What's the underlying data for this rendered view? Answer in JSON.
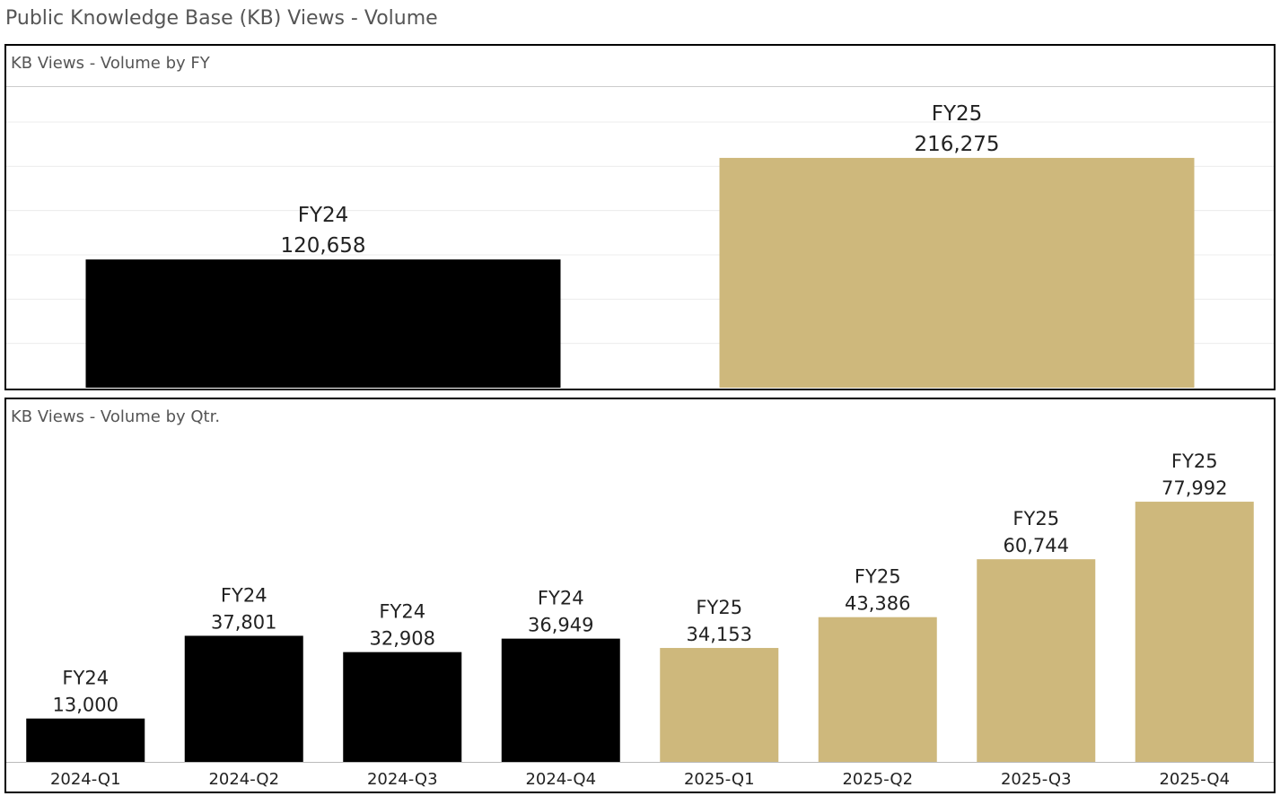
{
  "page": {
    "title": "Public Knowledge Base (KB) Views - Volume"
  },
  "colors": {
    "FY24": "#000000",
    "FY25": "#CEB87C",
    "gridline": "#ececec",
    "axis": "#bbbbbb"
  },
  "chart_data": [
    {
      "type": "bar",
      "title": "KB Views - Volume by FY",
      "categories": [
        "FY24",
        "FY25"
      ],
      "values": [
        120658,
        216275
      ],
      "value_labels": [
        "120,658",
        "216,275"
      ],
      "bar_labels": [
        "FY24",
        "FY25"
      ],
      "color_by": [
        "FY24",
        "FY25"
      ],
      "xlabel": "",
      "ylabel": "",
      "ylim": [
        0,
        250000
      ],
      "grid": true,
      "show_category_axis": false
    },
    {
      "type": "bar",
      "title": "KB Views - Volume by Qtr.",
      "categories": [
        "2024-Q1",
        "2024-Q2",
        "2024-Q3",
        "2024-Q4",
        "2025-Q1",
        "2025-Q2",
        "2025-Q3",
        "2025-Q4"
      ],
      "values": [
        13000,
        37801,
        32908,
        36949,
        34153,
        43386,
        60744,
        77992
      ],
      "value_labels": [
        "13,000",
        "37,801",
        "32,908",
        "36,949",
        "34,153",
        "43,386",
        "60,744",
        "77,992"
      ],
      "bar_labels": [
        "FY24",
        "FY24",
        "FY24",
        "FY24",
        "FY25",
        "FY25",
        "FY25",
        "FY25"
      ],
      "color_by": [
        "FY24",
        "FY24",
        "FY24",
        "FY24",
        "FY25",
        "FY25",
        "FY25",
        "FY25"
      ],
      "xlabel": "",
      "ylabel": "",
      "ylim": [
        0,
        85000
      ],
      "grid": false,
      "show_category_axis": true
    }
  ]
}
